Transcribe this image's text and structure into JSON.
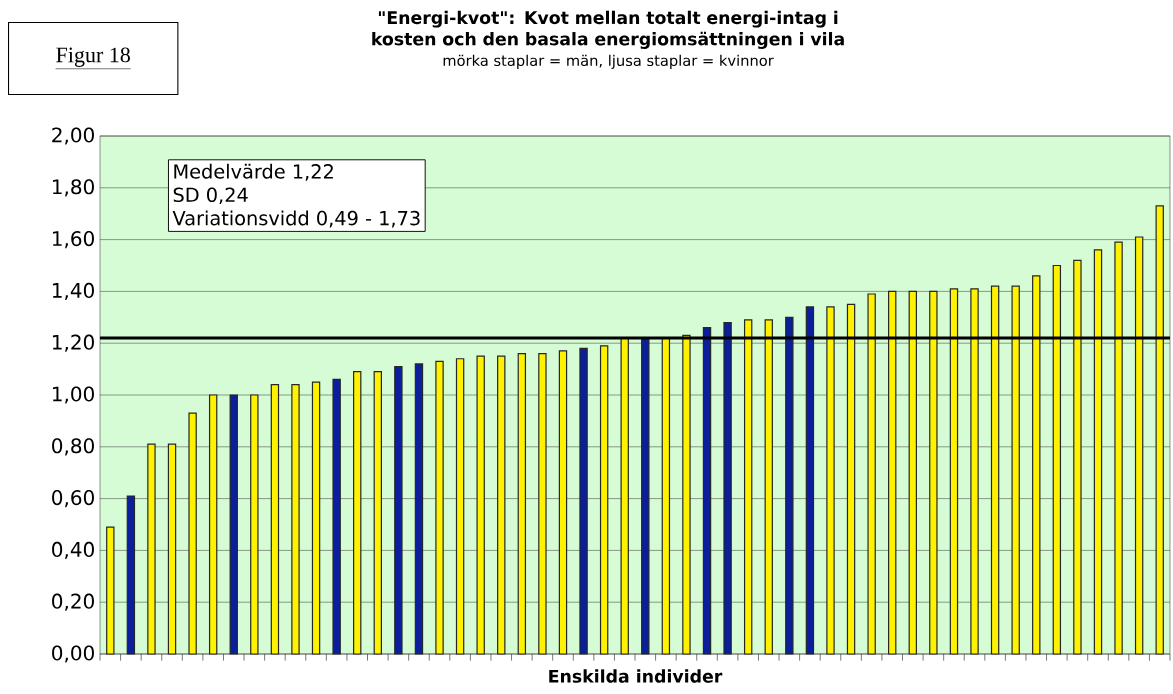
{
  "chart_data": {
    "type": "bar",
    "title": "\"Energi-kvot\": Kvot mellan totalt energi-intag i kosten och den basala energiomsättningen i vila",
    "subtitle": "mörka staplar = män, ljusa staplar = kvinnor",
    "xlabel": "Enskilda individer",
    "annotations": [
      "Figur 18",
      "Medelvärde 1,22",
      "SD 0,24",
      "Variationsvidd 0,49 - 1,73"
    ],
    "categories": [
      null,
      null,
      null,
      null,
      null,
      null,
      null,
      null,
      null,
      null,
      null,
      null,
      null,
      null,
      null,
      null,
      null,
      null,
      null,
      null,
      null,
      null,
      null,
      null,
      null,
      null,
      null,
      null,
      null,
      null,
      null,
      null,
      null,
      null,
      null,
      null,
      null,
      null,
      null,
      null,
      null,
      null,
      null,
      null,
      null,
      null,
      null,
      null,
      null,
      null,
      null,
      null
    ],
    "values": [
      0.49,
      0.61,
      0.81,
      0.81,
      0.93,
      1.0,
      1.0,
      1.0,
      1.04,
      1.04,
      1.05,
      1.06,
      1.09,
      1.09,
      1.11,
      1.12,
      1.13,
      1.14,
      1.15,
      1.15,
      1.16,
      1.16,
      1.17,
      1.18,
      1.19,
      1.22,
      1.22,
      1.22,
      1.23,
      1.26,
      1.28,
      1.29,
      1.29,
      1.3,
      1.34,
      1.34,
      1.35,
      1.39,
      1.4,
      1.4,
      1.4,
      1.41,
      1.41,
      1.42,
      1.42,
      1.46,
      1.5,
      1.52,
      1.56,
      1.59,
      1.61,
      1.73
    ],
    "colors": [
      "#fff200",
      "#0a1f9e",
      "#fff200",
      "#fff200",
      "#fff200",
      "#fff200",
      "#0a1f9e",
      "#fff200",
      "#fff200",
      "#fff200",
      "#fff200",
      "#0a1f9e",
      "#fff200",
      "#fff200",
      "#0a1f9e",
      "#0a1f9e",
      "#fff200",
      "#fff200",
      "#fff200",
      "#fff200",
      "#fff200",
      "#fff200",
      "#fff200",
      "#0a1f9e",
      "#fff200",
      "#fff200",
      "#0a1f9e",
      "#fff200",
      "#fff200",
      "#0a1f9e",
      "#0a1f9e",
      "#fff200",
      "#fff200",
      "#0a1f9e",
      "#0a1f9e",
      "#fff200",
      "#fff200",
      "#fff200",
      "#fff200",
      "#fff200",
      "#fff200",
      "#fff200",
      "#fff200",
      "#fff200",
      "#fff200",
      "#fff200",
      "#fff200",
      "#fff200",
      "#fff200",
      "#fff200",
      "#fff200",
      "#fff200"
    ],
    "ylim": [
      0,
      2
    ],
    "yticks": [
      {
        "value": 0,
        "label": "0,00"
      },
      {
        "value": 0.2,
        "label": "0,20"
      },
      {
        "value": 0.4,
        "label": "0,40"
      },
      {
        "value": 0.6,
        "label": "0,60"
      },
      {
        "value": 0.8,
        "label": "0,80"
      },
      {
        "value": 1.0,
        "label": "1,00"
      },
      {
        "value": 1.2,
        "label": "1,20"
      },
      {
        "value": 1.4,
        "label": "1,40"
      },
      {
        "value": 1.6,
        "label": "1,60"
      },
      {
        "value": 1.8,
        "label": "1,80"
      },
      {
        "value": 2.0,
        "label": "2,00"
      }
    ],
    "grid": "y",
    "ref_lines": [
      {
        "axis": "y",
        "value": 1.22,
        "color": "#000000"
      }
    ]
  }
}
